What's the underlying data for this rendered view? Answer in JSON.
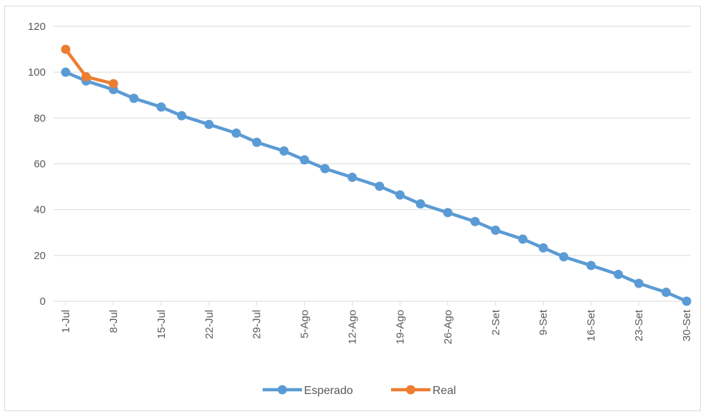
{
  "chart_data": {
    "type": "line",
    "title": "",
    "xlabel": "",
    "ylabel": "",
    "ylim": [
      0,
      120
    ],
    "yticks": [
      "0",
      "20",
      "40",
      "60",
      "80",
      "100",
      "120"
    ],
    "xtick_labels": [
      "1-Jul",
      "8-Jul",
      "15-Jul",
      "22-Jul",
      "29-Jul",
      "5-Ago",
      "12-Ago",
      "19-Ago",
      "26-Ago",
      "2-Set",
      "9-Set",
      "16-Set",
      "23-Set",
      "30-Set"
    ],
    "xrange": [
      "2023-07-01",
      "2023-09-30"
    ],
    "grid": true,
    "legend_position": "bottom",
    "series": [
      {
        "name": "Esperado",
        "color": "#5B9BD5",
        "points": [
          [
            "2023-07-01",
            100
          ],
          [
            "2023-07-04",
            96.2
          ],
          [
            "2023-07-08",
            92.4
          ],
          [
            "2023-07-11",
            88.6
          ],
          [
            "2023-07-15",
            84.8
          ],
          [
            "2023-07-18",
            81.0
          ],
          [
            "2023-07-22",
            77.2
          ],
          [
            "2023-07-26",
            73.4
          ],
          [
            "2023-07-29",
            69.4
          ],
          [
            "2023-08-02",
            65.6
          ],
          [
            "2023-08-05",
            61.7
          ],
          [
            "2023-08-08",
            57.9
          ],
          [
            "2023-08-12",
            54.1
          ],
          [
            "2023-08-16",
            50.2
          ],
          [
            "2023-08-19",
            46.4
          ],
          [
            "2023-08-22",
            42.5
          ],
          [
            "2023-08-26",
            38.7
          ],
          [
            "2023-08-30",
            34.8
          ],
          [
            "2023-09-02",
            31.0
          ],
          [
            "2023-09-06",
            27.1
          ],
          [
            "2023-09-09",
            23.3
          ],
          [
            "2023-09-12",
            19.4
          ],
          [
            "2023-09-16",
            15.6
          ],
          [
            "2023-09-20",
            11.7
          ],
          [
            "2023-09-23",
            7.8
          ],
          [
            "2023-09-27",
            3.9
          ],
          [
            "2023-09-30",
            0
          ]
        ]
      },
      {
        "name": "Real",
        "color": "#ED7D31",
        "points": [
          [
            "2023-07-01",
            110
          ],
          [
            "2023-07-04",
            98
          ],
          [
            "2023-07-08",
            95
          ]
        ]
      }
    ]
  }
}
